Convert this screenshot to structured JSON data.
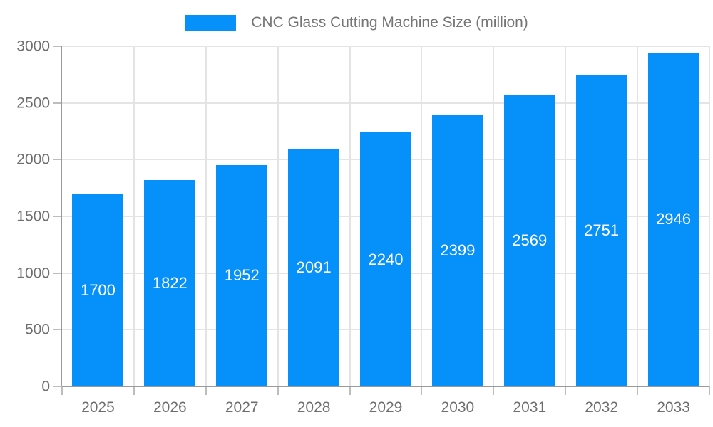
{
  "chart_data": {
    "type": "bar",
    "title": "CNC Glass Cutting Machine Size (million)",
    "categories": [
      "2025",
      "2026",
      "2027",
      "2028",
      "2029",
      "2030",
      "2031",
      "2032",
      "2033"
    ],
    "values": [
      1700,
      1822,
      1952,
      2091,
      2240,
      2399,
      2569,
      2751,
      2946
    ],
    "xlabel": "",
    "ylabel": "",
    "ylim": [
      0,
      3000
    ],
    "yticks": [
      0,
      500,
      1000,
      1500,
      2000,
      2500,
      3000
    ],
    "grid": true,
    "legend_position": "top-center",
    "bar_labels_inside": true,
    "colors": {
      "bar": "#0690fa",
      "bar_label": "#ffffff",
      "grid": "#e4e4e4",
      "axis": "#9a9a9a",
      "tick": "#bdbdbd",
      "text": "#6e6e6e",
      "title_text": "#757575"
    }
  }
}
